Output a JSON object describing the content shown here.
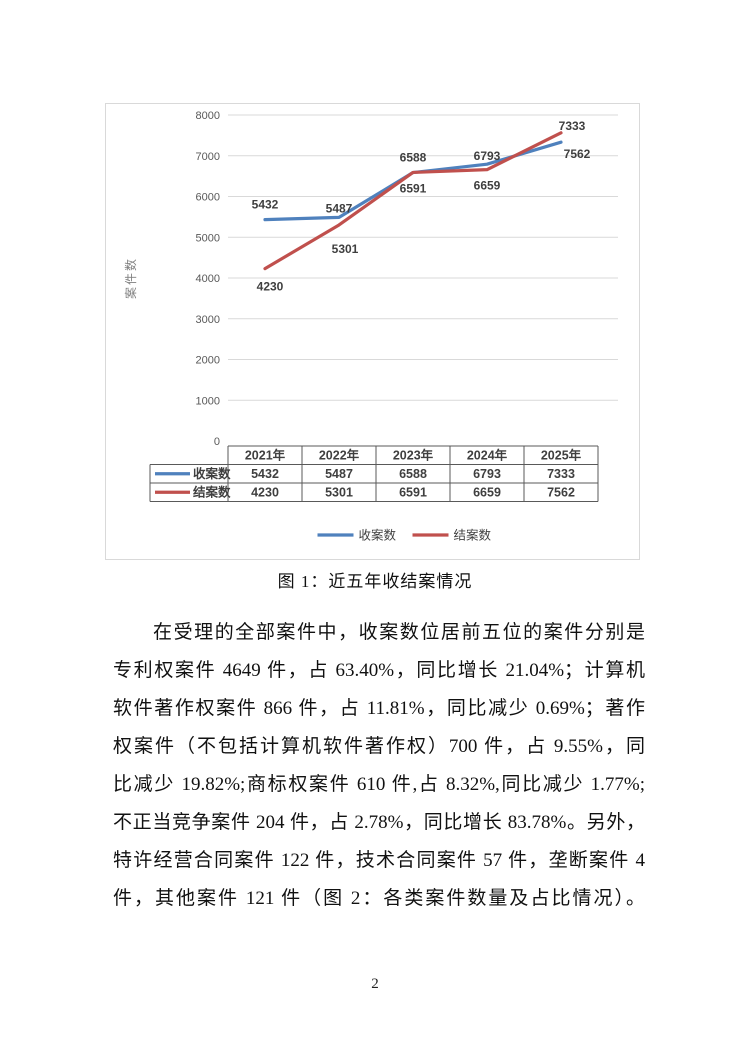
{
  "page": {
    "number": "2"
  },
  "figure": {
    "caption": "图 1：近五年收结案情况"
  },
  "chart_data": {
    "type": "line",
    "title": "",
    "xlabel": "",
    "ylabel": "案件数",
    "ylim": [
      0,
      8000
    ],
    "ytick_interval": 1000,
    "grid": true,
    "legend_position": "bottom",
    "data_table": true,
    "categories": [
      "2021年",
      "2022年",
      "2023年",
      "2024年",
      "2025年"
    ],
    "series": [
      {
        "name": "收案数",
        "color": "#4F81BD",
        "values": [
          5432,
          5487,
          6588,
          6793,
          7333
        ]
      },
      {
        "name": "结案数",
        "color": "#C0504D",
        "values": [
          4230,
          5301,
          6591,
          6659,
          7562
        ]
      }
    ],
    "colors": {
      "grid": "#d9d9d9",
      "chart_border": "#d9d9d9",
      "tick_text": "#595959",
      "label_text": "#3f3f3f",
      "table_border": "#595959",
      "axis_title": "#7f7f7f"
    }
  },
  "body": {
    "lines": [
      "在受理的全部案件中，收案数位居前五位的案件分别是",
      "专利权案件 4649 件，占 63.40%，同比增长 21.04%；计算机",
      "软件著作权案件 866 件，占 11.81%，同比减少 0.69%；著作",
      "权案件（不包括计算机软件著作权）700 件，占 9.55%，同",
      "比减少 19.82%;商标权案件 610 件,占 8.32%,同比减少 1.77%;",
      "不正当竞争案件 204 件，占 2.78%，同比增长 83.78%。另外，",
      "特许经营合同案件 122 件，技术合同案件 57 件，垄断案件 4",
      "件，其他案件 121 件（图 2：各类案件数量及占比情况）。"
    ]
  }
}
